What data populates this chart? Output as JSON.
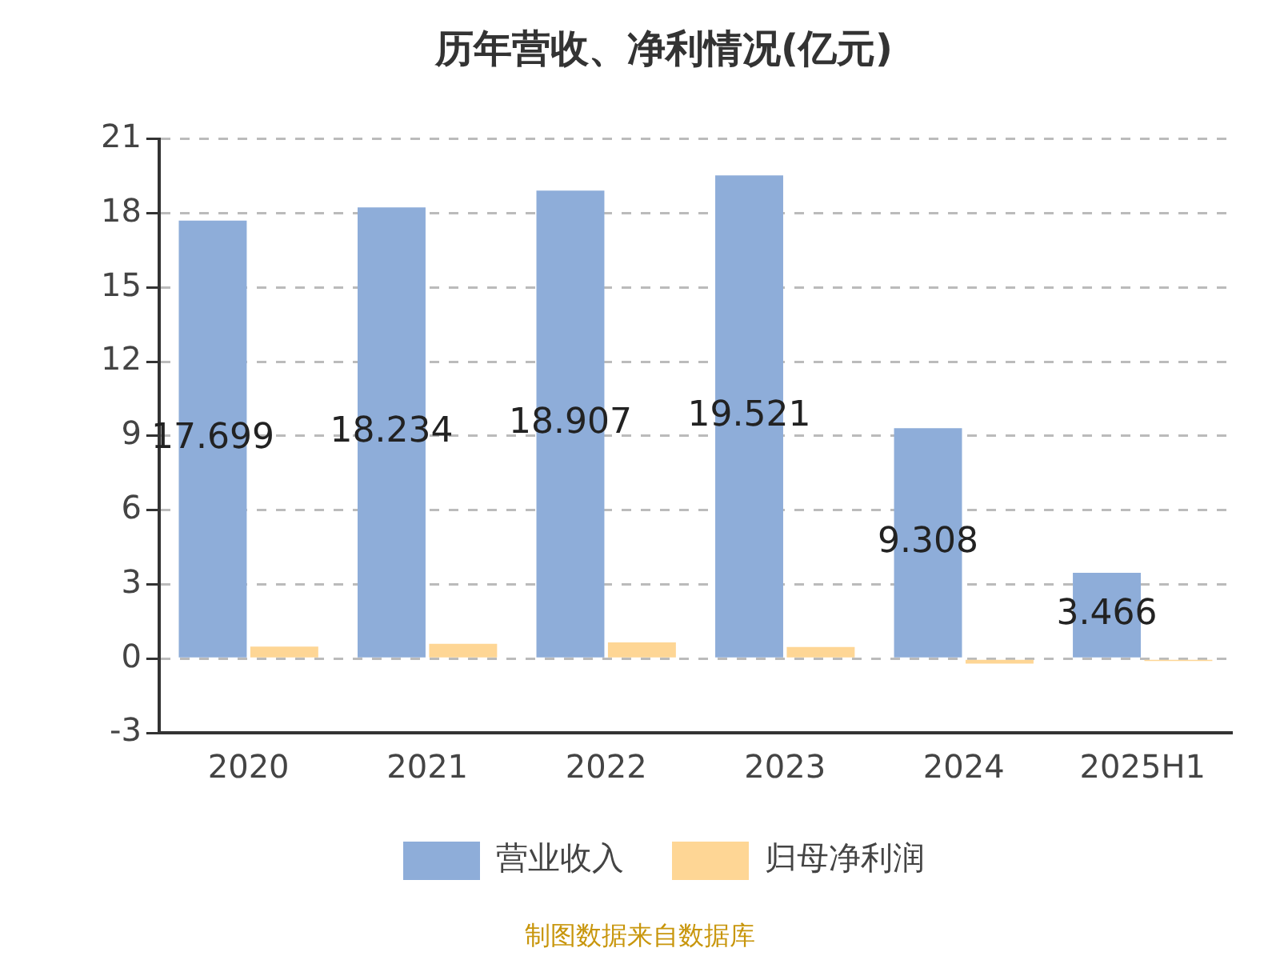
{
  "chart_data": {
    "type": "bar",
    "title": "历年营收、净利情况(亿元)",
    "categories": [
      "2020",
      "2021",
      "2022",
      "2023",
      "2024",
      "2025H1"
    ],
    "series": [
      {
        "name": "营业收入",
        "color": "#8eadd9",
        "values": [
          17.699,
          18.234,
          18.907,
          19.521,
          9.308,
          3.466
        ],
        "value_labels": [
          "17.699",
          "18.234",
          "18.907",
          "19.521",
          "9.308",
          "3.466"
        ]
      },
      {
        "name": "归母净利润",
        "color": "#fed695",
        "values": [
          0.48,
          0.6,
          0.65,
          0.47,
          -0.2,
          -0.1
        ]
      }
    ],
    "ylim": [
      -3,
      21
    ],
    "yticks": [
      -3,
      0,
      3,
      6,
      9,
      12,
      15,
      18,
      21
    ],
    "grid": "y",
    "legend": "bottom",
    "annotations": [
      "制图数据来自数据库"
    ]
  }
}
